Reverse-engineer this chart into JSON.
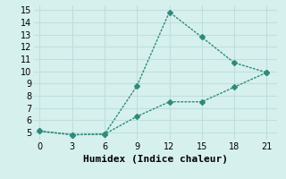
{
  "line1_x": [
    0,
    3,
    6,
    9,
    12,
    15,
    18,
    21
  ],
  "line1_y": [
    5.1,
    4.8,
    4.85,
    8.8,
    14.85,
    12.8,
    10.7,
    9.9
  ],
  "line2_x": [
    0,
    3,
    6,
    9,
    12,
    15,
    18,
    21
  ],
  "line2_y": [
    5.1,
    4.8,
    4.85,
    6.3,
    7.5,
    7.5,
    8.7,
    9.9
  ],
  "color": "#2e8b7a",
  "xlabel": "Humidex (Indice chaleur)",
  "xlim": [
    -0.5,
    22
  ],
  "ylim": [
    4.4,
    15.4
  ],
  "xticks": [
    0,
    3,
    6,
    9,
    12,
    15,
    18,
    21
  ],
  "yticks": [
    5,
    6,
    7,
    8,
    9,
    10,
    11,
    12,
    13,
    14,
    15
  ],
  "bg_color": "#d6f0ee",
  "grid_color": "#c0dede",
  "marker": "D",
  "marker_size": 3,
  "linewidth": 1.0,
  "xlabel_fontsize": 8,
  "tick_fontsize": 7
}
